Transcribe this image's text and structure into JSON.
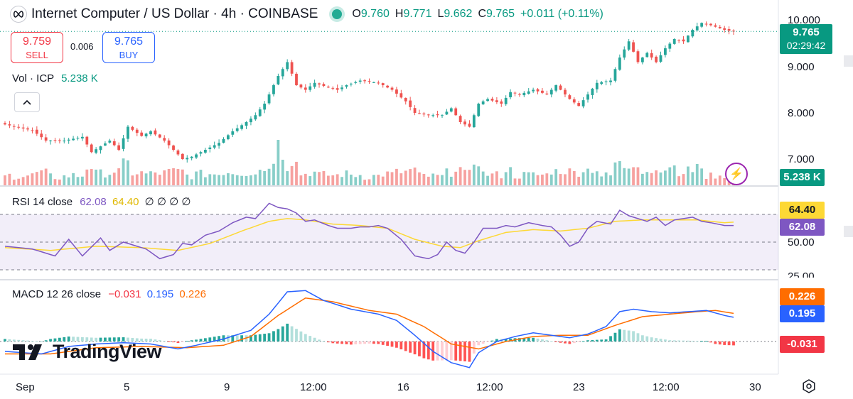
{
  "header": {
    "title": "Internet Computer / US Dollar · 4h · COINBASE",
    "open_label": "O",
    "open": "9.760",
    "high_label": "H",
    "high": "9.771",
    "low_label": "L",
    "low": "9.662",
    "close_label": "C",
    "close": "9.765",
    "change": "+0.011 (+0.11%)"
  },
  "trade": {
    "sell_price": "9.759",
    "sell_label": "SELL",
    "spread": "0.006",
    "buy_price": "9.765",
    "buy_label": "BUY"
  },
  "volume_pane": {
    "label": "Vol · ICP",
    "value": "5.238 K"
  },
  "rsi_pane": {
    "label": "RSI 14 close",
    "rsi": "62.08",
    "ma": "64.40",
    "extras": "∅ ∅ ∅ ∅"
  },
  "macd_pane": {
    "label": "MACD 12 26 close",
    "hist": "−0.031",
    "macd": "0.195",
    "signal": "0.226"
  },
  "price_axis": {
    "labels": [
      "10.000",
      "9.000",
      "8.000",
      "7.000"
    ]
  },
  "price_tag": {
    "price": "9.765",
    "countdown": "02:29:42"
  },
  "volume_tag": "5.238 K",
  "rsi_axis": {
    "labels": [
      "50.00",
      "25.00"
    ],
    "tag_ma": "64.40",
    "tag_rsi": "62.08"
  },
  "macd_axis": {
    "tag_signal": "0.226",
    "tag_macd": "0.195",
    "tag_hist": "-0.031"
  },
  "time_axis": [
    "Sep",
    "5",
    "9",
    "12:00",
    "16",
    "12:00",
    "23",
    "12:00",
    "30"
  ],
  "brand": "TradingView",
  "colors": {
    "up": "#26a69a",
    "down": "#ef5350",
    "rsi": "#7e57c2",
    "rsi_ma": "#fdd835",
    "macd": "#2962ff",
    "signal": "#ff6d00",
    "accent": "#089981"
  },
  "icons": [
    "icp-logo-icon",
    "live-dot-icon",
    "collapse-chevron-icon",
    "bolt-icon",
    "settings-icon",
    "tradingview-logo-icon"
  ],
  "chart_data": [
    {
      "type": "candlestick",
      "title": "Internet Computer / US Dollar · 4h · COINBASE",
      "ylim": [
        6.6,
        10.1
      ],
      "x_ticks": [
        "Sep",
        "5",
        "9",
        "12:00",
        "16",
        "12:00",
        "23",
        "12:00",
        "30"
      ],
      "anchors": [
        [
          0,
          7.75
        ],
        [
          6,
          7.62
        ],
        [
          9,
          7.4
        ],
        [
          13,
          7.4
        ],
        [
          17,
          7.48
        ],
        [
          19,
          7.15
        ],
        [
          23,
          7.4
        ],
        [
          25,
          7.2
        ],
        [
          27,
          7.7
        ],
        [
          30,
          7.5
        ],
        [
          32,
          7.6
        ],
        [
          35,
          7.4
        ],
        [
          37,
          7.2
        ],
        [
          39,
          7.0
        ],
        [
          41,
          7.05
        ],
        [
          44,
          7.2
        ],
        [
          47,
          7.35
        ],
        [
          50,
          7.6
        ],
        [
          53,
          7.8
        ],
        [
          55,
          7.95
        ],
        [
          57,
          8.2
        ],
        [
          60,
          8.8
        ],
        [
          62,
          9.1
        ],
        [
          64,
          8.6
        ],
        [
          66,
          8.5
        ],
        [
          68,
          8.65
        ],
        [
          71,
          8.55
        ],
        [
          73,
          8.5
        ],
        [
          75,
          8.6
        ],
        [
          78,
          8.7
        ],
        [
          82,
          8.65
        ],
        [
          85,
          8.5
        ],
        [
          88,
          8.25
        ],
        [
          90,
          8.0
        ],
        [
          93,
          7.95
        ],
        [
          96,
          7.95
        ],
        [
          98,
          8.1
        ],
        [
          100,
          7.8
        ],
        [
          102,
          7.7
        ],
        [
          104,
          8.2
        ],
        [
          106,
          8.3
        ],
        [
          109,
          8.2
        ],
        [
          111,
          8.45
        ],
        [
          113,
          8.4
        ],
        [
          116,
          8.5
        ],
        [
          119,
          8.4
        ],
        [
          121,
          8.6
        ],
        [
          124,
          8.3
        ],
        [
          126,
          8.15
        ],
        [
          128,
          8.4
        ],
        [
          130,
          8.65
        ],
        [
          133,
          8.7
        ],
        [
          135,
          9.2
        ],
        [
          137,
          9.55
        ],
        [
          139,
          9.1
        ],
        [
          141,
          9.3
        ],
        [
          143,
          9.1
        ],
        [
          145,
          9.4
        ],
        [
          147,
          9.6
        ],
        [
          149,
          9.55
        ],
        [
          151,
          9.8
        ],
        [
          153,
          9.95
        ],
        [
          155,
          9.9
        ],
        [
          158,
          9.8
        ],
        [
          160,
          9.76
        ]
      ],
      "last_close": 9.765
    },
    {
      "type": "bar",
      "title": "Vol · ICP",
      "last_value": "5.238 K",
      "note": "volume histogram coloured by candle direction"
    },
    {
      "type": "line",
      "title": "RSI 14 close",
      "ylim": [
        20,
        80
      ],
      "bands": [
        30,
        50,
        70
      ],
      "series": [
        {
          "name": "RSI",
          "anchors": [
            [
              0,
              47
            ],
            [
              6,
              45
            ],
            [
              11,
              40
            ],
            [
              14,
              52
            ],
            [
              17,
              40
            ],
            [
              21,
              53
            ],
            [
              23,
              44
            ],
            [
              26,
              50
            ],
            [
              31,
              45
            ],
            [
              34,
              38
            ],
            [
              37,
              41
            ],
            [
              39,
              49
            ],
            [
              41,
              48
            ],
            [
              44,
              55
            ],
            [
              47,
              58
            ],
            [
              50,
              64
            ],
            [
              53,
              68
            ],
            [
              55,
              67
            ],
            [
              58,
              78
            ],
            [
              60,
              75
            ],
            [
              62,
              74
            ],
            [
              64,
              71
            ],
            [
              66,
              65
            ],
            [
              68,
              66
            ],
            [
              71,
              62
            ],
            [
              73,
              60
            ],
            [
              76,
              60
            ],
            [
              78,
              61
            ],
            [
              80,
              61
            ],
            [
              82,
              62
            ],
            [
              84,
              60
            ],
            [
              87,
              52
            ],
            [
              90,
              40
            ],
            [
              93,
              38
            ],
            [
              95,
              41
            ],
            [
              97,
              50
            ],
            [
              99,
              44
            ],
            [
              101,
              42
            ],
            [
              103,
              50
            ],
            [
              105,
              60
            ],
            [
              108,
              60
            ],
            [
              110,
              62
            ],
            [
              112,
              61
            ],
            [
              115,
              64
            ],
            [
              118,
              62
            ],
            [
              120,
              61
            ],
            [
              122,
              55
            ],
            [
              124,
              47
            ],
            [
              126,
              50
            ],
            [
              128,
              60
            ],
            [
              130,
              65
            ],
            [
              133,
              63
            ],
            [
              135,
              73
            ],
            [
              137,
              69
            ],
            [
              139,
              67
            ],
            [
              141,
              65
            ],
            [
              143,
              68
            ],
            [
              145,
              62
            ],
            [
              147,
              66
            ],
            [
              149,
              67
            ],
            [
              151,
              68
            ],
            [
              153,
              65
            ],
            [
              155,
              64
            ],
            [
              158,
              62
            ],
            [
              160,
              62
            ]
          ]
        },
        {
          "name": "RSI-based MA",
          "anchors": [
            [
              0,
              46
            ],
            [
              10,
              44
            ],
            [
              20,
              47
            ],
            [
              30,
              46
            ],
            [
              38,
              44
            ],
            [
              45,
              49
            ],
            [
              52,
              58
            ],
            [
              58,
              65
            ],
            [
              62,
              67
            ],
            [
              66,
              66
            ],
            [
              72,
              63
            ],
            [
              78,
              62
            ],
            [
              84,
              60
            ],
            [
              90,
              52
            ],
            [
              96,
              47
            ],
            [
              100,
              46
            ],
            [
              104,
              51
            ],
            [
              110,
              57
            ],
            [
              116,
              59
            ],
            [
              122,
              58
            ],
            [
              128,
              60
            ],
            [
              134,
              65
            ],
            [
              140,
              66
            ],
            [
              146,
              66
            ],
            [
              152,
              66
            ],
            [
              158,
              64
            ],
            [
              160,
              64.4
            ]
          ]
        }
      ]
    },
    {
      "type": "line",
      "title": "MACD 12 26 close",
      "ylim": [
        -0.34,
        0.42
      ],
      "series": [
        {
          "name": "MACD",
          "anchors": [
            [
              0,
              -0.08
            ],
            [
              8,
              -0.1
            ],
            [
              14,
              -0.04
            ],
            [
              20,
              -0.02
            ],
            [
              26,
              -0.01
            ],
            [
              32,
              -0.02
            ],
            [
              38,
              -0.06
            ],
            [
              42,
              -0.03
            ],
            [
              48,
              0.02
            ],
            [
              54,
              0.09
            ],
            [
              58,
              0.22
            ],
            [
              62,
              0.4
            ],
            [
              66,
              0.41
            ],
            [
              70,
              0.33
            ],
            [
              76,
              0.26
            ],
            [
              82,
              0.22
            ],
            [
              86,
              0.17
            ],
            [
              90,
              0.05
            ],
            [
              94,
              -0.08
            ],
            [
              98,
              -0.17
            ],
            [
              102,
              -0.21
            ],
            [
              104,
              -0.09
            ],
            [
              108,
              0.0
            ],
            [
              112,
              0.04
            ],
            [
              116,
              0.07
            ],
            [
              120,
              0.05
            ],
            [
              124,
              0.03
            ],
            [
              128,
              0.06
            ],
            [
              132,
              0.12
            ],
            [
              135,
              0.24
            ],
            [
              138,
              0.26
            ],
            [
              142,
              0.24
            ],
            [
              146,
              0.23
            ],
            [
              150,
              0.24
            ],
            [
              154,
              0.25
            ],
            [
              158,
              0.21
            ],
            [
              160,
              0.195
            ]
          ]
        },
        {
          "name": "Signal",
          "anchors": [
            [
              0,
              -0.1
            ],
            [
              10,
              -0.1
            ],
            [
              20,
              -0.05
            ],
            [
              30,
              -0.04
            ],
            [
              40,
              -0.05
            ],
            [
              48,
              -0.03
            ],
            [
              54,
              0.04
            ],
            [
              60,
              0.21
            ],
            [
              66,
              0.35
            ],
            [
              72,
              0.32
            ],
            [
              80,
              0.25
            ],
            [
              86,
              0.22
            ],
            [
              92,
              0.12
            ],
            [
              98,
              -0.02
            ],
            [
              104,
              -0.06
            ],
            [
              110,
              0.0
            ],
            [
              116,
              0.04
            ],
            [
              122,
              0.05
            ],
            [
              128,
              0.05
            ],
            [
              134,
              0.13
            ],
            [
              140,
              0.2
            ],
            [
              146,
              0.22
            ],
            [
              152,
              0.24
            ],
            [
              156,
              0.25
            ],
            [
              160,
              0.226
            ]
          ]
        }
      ],
      "histogram_last": -0.031
    }
  ]
}
